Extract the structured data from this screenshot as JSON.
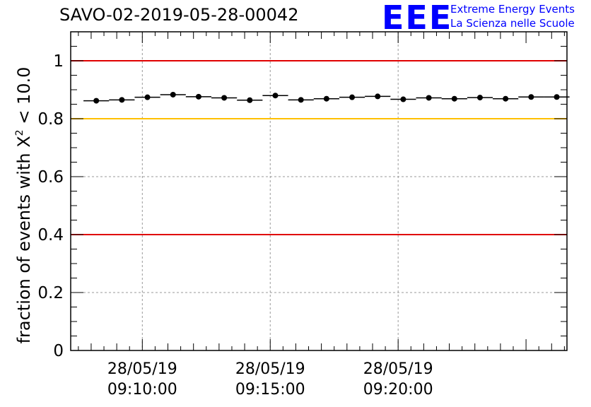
{
  "header": {
    "title": "SAVO-02-2019-05-28-00042",
    "logo_text": "EEE",
    "tagline_line1": "Extreme Energy Events",
    "tagline_line2": "La Scienza nelle Scuole"
  },
  "colors": {
    "red_line": "#e00000",
    "yellow_line": "#ffc000",
    "logo_blue": "#0000ff",
    "data_black": "#000000",
    "grid": "#999999"
  },
  "chart_data": {
    "type": "scatter",
    "title": "SAVO-02-2019-05-28-00042",
    "xlabel": "",
    "ylabel_prefix": "fraction of events with ",
    "ylabel_symbol": "X",
    "ylabel_superscript": "2",
    "ylabel_suffix": " < 10.0",
    "x_unit": "minutes after 09:00:00 on 28/05/19",
    "xlim": [
      7.2,
      26.6
    ],
    "ylim": [
      0,
      1.1
    ],
    "grid": true,
    "y_ticks": [
      {
        "value": 0,
        "label": "0"
      },
      {
        "value": 0.2,
        "label": "0.2"
      },
      {
        "value": 0.4,
        "label": "0.4"
      },
      {
        "value": 0.6,
        "label": "0.6"
      },
      {
        "value": 0.8,
        "label": "0.8"
      },
      {
        "value": 1,
        "label": "1"
      }
    ],
    "x_ticks": [
      {
        "value": 10,
        "date": "28/05/19",
        "time": "09:10:00"
      },
      {
        "value": 15,
        "date": "28/05/19",
        "time": "09:15:00"
      },
      {
        "value": 20,
        "date": "28/05/19",
        "time": "09:20:00"
      }
    ],
    "reference_lines": [
      {
        "name": "upper-red",
        "y": 1.0,
        "color": "#e00000"
      },
      {
        "name": "yellow",
        "y": 0.8,
        "color": "#ffc000"
      },
      {
        "name": "lower-red",
        "y": 0.4,
        "color": "#e00000"
      }
    ],
    "bin_width": 1.0,
    "series": [
      {
        "name": "fraction",
        "x": [
          8.2,
          9.2,
          10.2,
          11.2,
          12.2,
          13.2,
          14.2,
          15.2,
          16.2,
          17.2,
          18.2,
          19.2,
          20.2,
          21.2,
          22.2,
          23.2,
          24.2,
          25.2,
          26.2
        ],
        "y": [
          0.862,
          0.865,
          0.874,
          0.883,
          0.876,
          0.872,
          0.864,
          0.88,
          0.865,
          0.869,
          0.874,
          0.877,
          0.867,
          0.872,
          0.869,
          0.873,
          0.869,
          0.875,
          0.875
        ]
      }
    ]
  }
}
